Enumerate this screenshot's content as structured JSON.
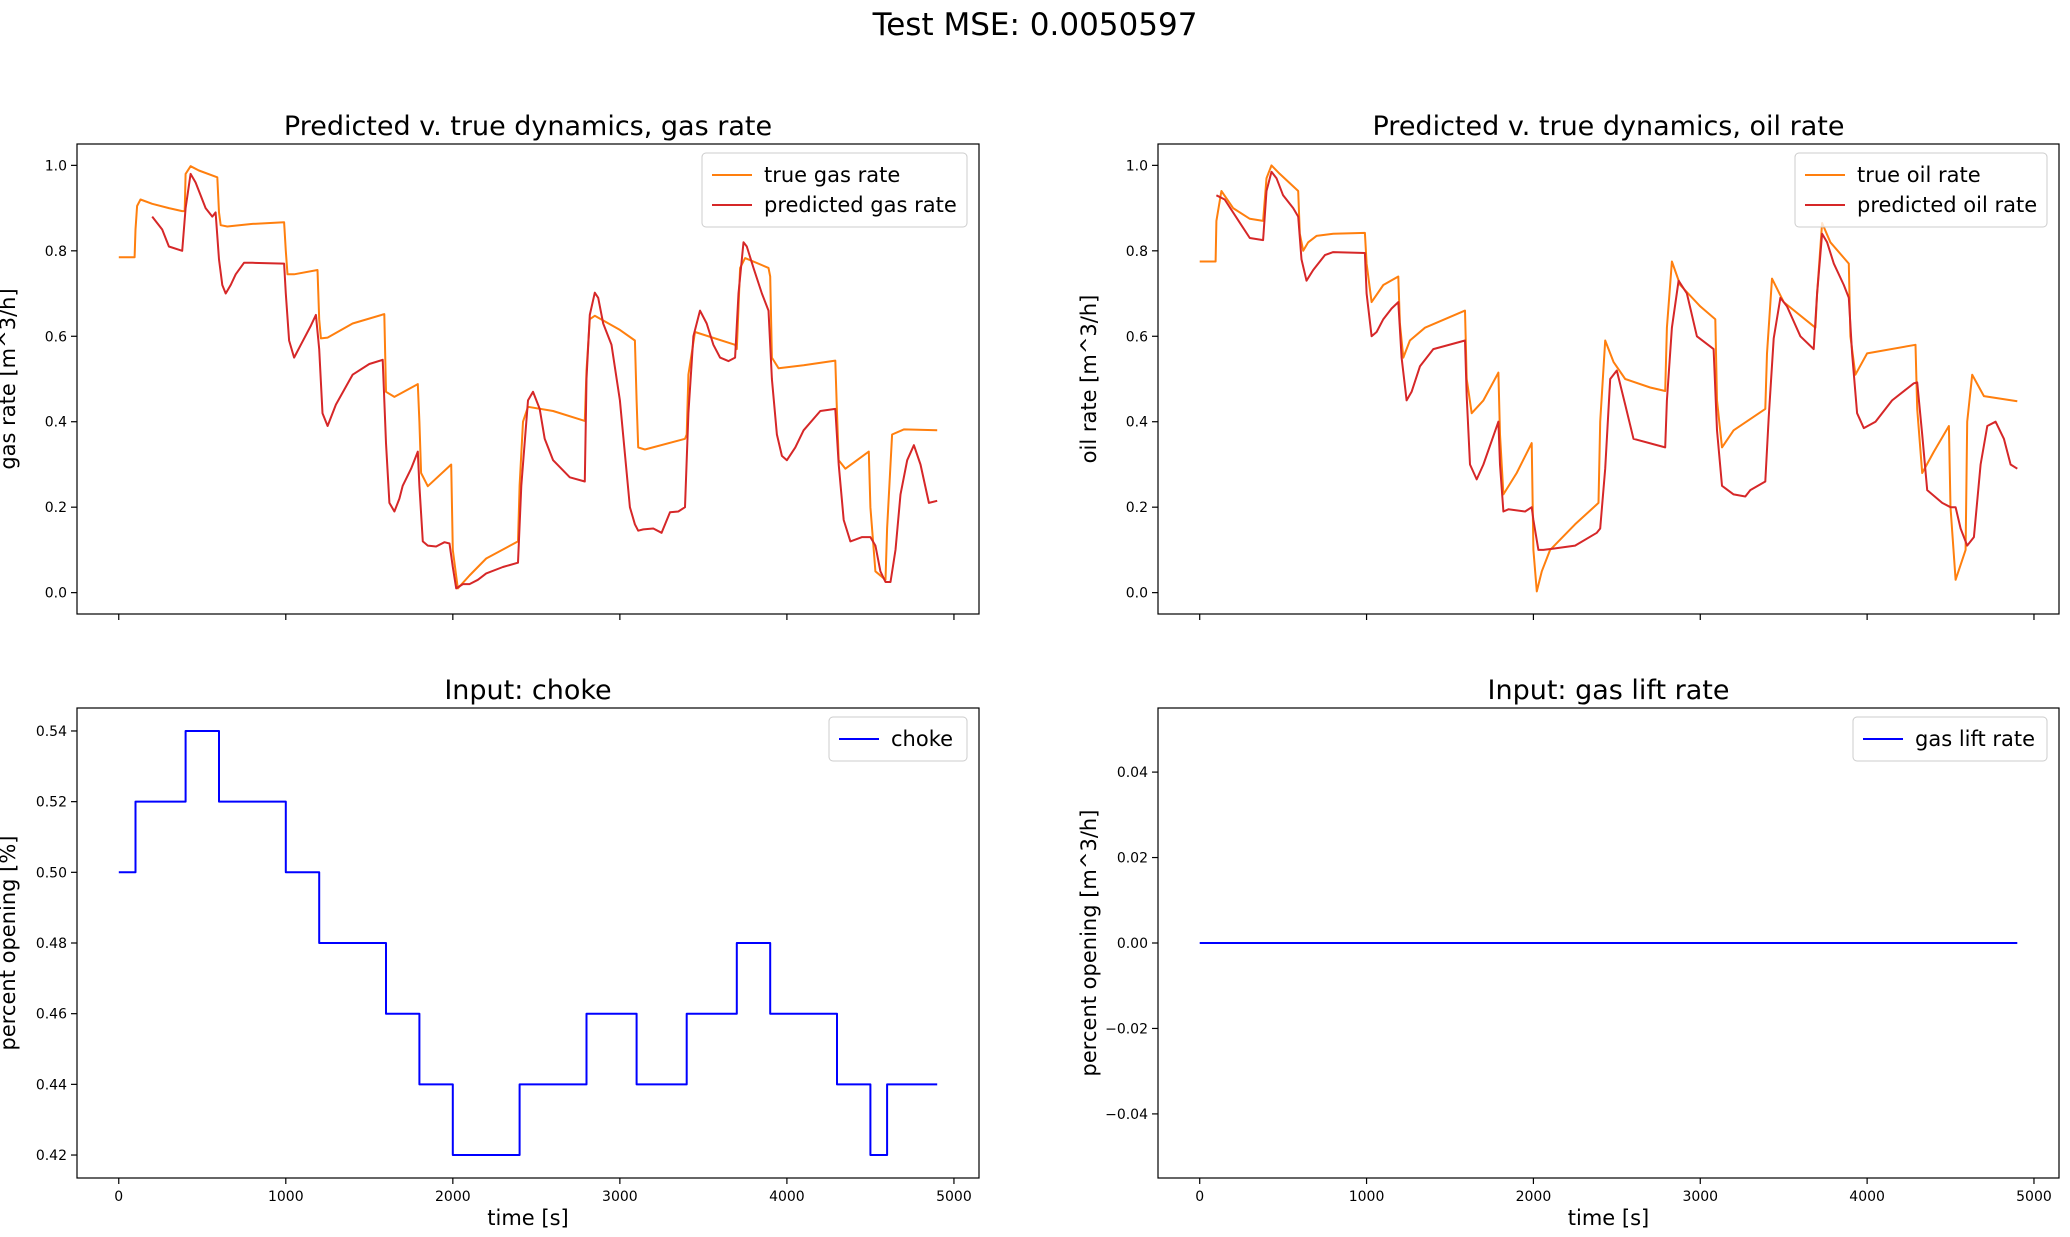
{
  "figure": {
    "suptitle": "Test MSE: 0.0050597"
  },
  "chart_data": [
    {
      "type": "line",
      "title": "Predicted v. true dynamics, gas rate",
      "xlabel": "",
      "ylabel": "gas rate [m^3/h]",
      "xlim": [
        -250,
        5150
      ],
      "ylim": [
        -0.05,
        1.05
      ],
      "yticks": [
        0.0,
        0.2,
        0.4,
        0.6,
        0.8,
        1.0
      ],
      "ytick_labels": [
        "0.0",
        "0.2",
        "0.4",
        "0.6",
        "0.8",
        "1.0"
      ],
      "xticks": [
        0,
        1000,
        2000,
        3000,
        4000,
        5000
      ],
      "xtick_labels": [],
      "legend": "top-right",
      "grid": false,
      "series": [
        {
          "name": "true gas rate",
          "color": "#ff7f0e",
          "x": [
            0,
            95,
            100,
            110,
            130,
            200,
            300,
            380,
            395,
            400,
            430,
            480,
            590,
            600,
            610,
            650,
            800,
            990,
            1000,
            1010,
            1050,
            1190,
            1200,
            1210,
            1250,
            1400,
            1590,
            1600,
            1650,
            1790,
            1800,
            1810,
            1850,
            1990,
            2000,
            2030,
            2100,
            2200,
            2390,
            2400,
            2420,
            2450,
            2600,
            2790,
            2800,
            2820,
            2850,
            3000,
            3090,
            3100,
            3110,
            3150,
            3390,
            3400,
            3410,
            3450,
            3690,
            3700,
            3720,
            3750,
            3890,
            3900,
            3910,
            3950,
            4100,
            4290,
            4300,
            4310,
            4350,
            4490,
            4500,
            4530,
            4590,
            4600,
            4630,
            4700,
            4900
          ],
          "y": [
            0.785,
            0.785,
            0.85,
            0.905,
            0.92,
            0.91,
            0.9,
            0.893,
            0.893,
            0.98,
            0.998,
            0.988,
            0.972,
            0.89,
            0.86,
            0.857,
            0.863,
            0.867,
            0.8,
            0.745,
            0.745,
            0.755,
            0.64,
            0.595,
            0.597,
            0.63,
            0.652,
            0.47,
            0.458,
            0.488,
            0.4,
            0.28,
            0.249,
            0.3,
            0.1,
            0.01,
            0.04,
            0.08,
            0.12,
            0.25,
            0.4,
            0.435,
            0.425,
            0.402,
            0.52,
            0.64,
            0.648,
            0.615,
            0.59,
            0.45,
            0.34,
            0.335,
            0.36,
            0.37,
            0.51,
            0.61,
            0.58,
            0.57,
            0.76,
            0.783,
            0.76,
            0.74,
            0.55,
            0.525,
            0.532,
            0.543,
            0.42,
            0.31,
            0.29,
            0.33,
            0.2,
            0.05,
            0.03,
            0.15,
            0.37,
            0.382,
            0.38
          ]
        },
        {
          "name": "predicted gas rate",
          "color": "#d62728",
          "x": [
            200,
            260,
            300,
            380,
            400,
            430,
            460,
            490,
            520,
            560,
            580,
            600,
            620,
            640,
            670,
            700,
            750,
            800,
            990,
            1000,
            1020,
            1050,
            1090,
            1150,
            1180,
            1200,
            1220,
            1250,
            1300,
            1400,
            1500,
            1580,
            1600,
            1620,
            1650,
            1680,
            1700,
            1750,
            1790,
            1800,
            1820,
            1850,
            1900,
            1950,
            1980,
            2000,
            2020,
            2060,
            2100,
            2150,
            2200,
            2300,
            2390,
            2410,
            2450,
            2480,
            2520,
            2550,
            2600,
            2700,
            2790,
            2800,
            2820,
            2850,
            2870,
            2900,
            2950,
            3000,
            3060,
            3090,
            3110,
            3140,
            3200,
            3250,
            3300,
            3350,
            3390,
            3410,
            3440,
            3480,
            3520,
            3560,
            3600,
            3650,
            3690,
            3710,
            3740,
            3760,
            3800,
            3850,
            3890,
            3910,
            3940,
            3970,
            4000,
            4050,
            4100,
            4200,
            4290,
            4310,
            4340,
            4380,
            4450,
            4500,
            4530,
            4560,
            4590,
            4620,
            4650,
            4680,
            4720,
            4760,
            4800,
            4850,
            4900
          ],
          "y": [
            0.88,
            0.85,
            0.81,
            0.8,
            0.9,
            0.98,
            0.96,
            0.93,
            0.9,
            0.88,
            0.89,
            0.78,
            0.72,
            0.7,
            0.72,
            0.745,
            0.772,
            0.772,
            0.77,
            0.7,
            0.59,
            0.55,
            0.58,
            0.625,
            0.65,
            0.57,
            0.42,
            0.39,
            0.44,
            0.51,
            0.535,
            0.545,
            0.35,
            0.21,
            0.19,
            0.22,
            0.25,
            0.29,
            0.33,
            0.25,
            0.12,
            0.11,
            0.108,
            0.118,
            0.115,
            0.06,
            0.01,
            0.02,
            0.02,
            0.03,
            0.045,
            0.06,
            0.07,
            0.25,
            0.45,
            0.47,
            0.43,
            0.36,
            0.31,
            0.27,
            0.26,
            0.5,
            0.65,
            0.702,
            0.69,
            0.63,
            0.58,
            0.45,
            0.2,
            0.16,
            0.145,
            0.148,
            0.15,
            0.14,
            0.188,
            0.19,
            0.2,
            0.42,
            0.6,
            0.66,
            0.63,
            0.58,
            0.55,
            0.542,
            0.55,
            0.7,
            0.82,
            0.81,
            0.76,
            0.7,
            0.66,
            0.5,
            0.37,
            0.32,
            0.31,
            0.34,
            0.38,
            0.425,
            0.43,
            0.3,
            0.17,
            0.12,
            0.13,
            0.13,
            0.11,
            0.05,
            0.025,
            0.025,
            0.1,
            0.23,
            0.31,
            0.345,
            0.3,
            0.21,
            0.215
          ]
        }
      ]
    },
    {
      "type": "line",
      "title": "Predicted v. true dynamics, oil rate",
      "xlabel": "",
      "ylabel": "oil rate [m^3/h]",
      "xlim": [
        -250,
        5150
      ],
      "ylim": [
        -0.05,
        1.05
      ],
      "yticks": [
        0.0,
        0.2,
        0.4,
        0.6,
        0.8,
        1.0
      ],
      "ytick_labels": [
        "0.0",
        "0.2",
        "0.4",
        "0.6",
        "0.8",
        "1.0"
      ],
      "xticks": [
        0,
        1000,
        2000,
        3000,
        4000,
        5000
      ],
      "xtick_labels": [],
      "legend": "top-right",
      "grid": false,
      "series": [
        {
          "name": "true oil rate",
          "color": "#ff7f0e",
          "x": [
            0,
            95,
            100,
            130,
            200,
            300,
            380,
            400,
            430,
            480,
            590,
            600,
            620,
            650,
            700,
            800,
            990,
            1000,
            1030,
            1100,
            1190,
            1200,
            1220,
            1260,
            1350,
            1590,
            1600,
            1630,
            1700,
            1790,
            1800,
            1820,
            1900,
            1990,
            2000,
            2020,
            2050,
            2100,
            2250,
            2390,
            2400,
            2430,
            2480,
            2550,
            2700,
            2790,
            2800,
            2830,
            2880,
            3000,
            3090,
            3100,
            3130,
            3200,
            3390,
            3400,
            3430,
            3500,
            3690,
            3700,
            3730,
            3780,
            3890,
            3900,
            3930,
            4000,
            4290,
            4300,
            4330,
            4400,
            4490,
            4500,
            4530,
            4590,
            4600,
            4630,
            4700,
            4900
          ],
          "y": [
            0.775,
            0.775,
            0.87,
            0.94,
            0.9,
            0.875,
            0.87,
            0.97,
            1.0,
            0.98,
            0.94,
            0.84,
            0.8,
            0.82,
            0.835,
            0.84,
            0.842,
            0.77,
            0.68,
            0.72,
            0.74,
            0.63,
            0.55,
            0.59,
            0.62,
            0.66,
            0.5,
            0.42,
            0.45,
            0.515,
            0.37,
            0.23,
            0.28,
            0.35,
            0.1,
            0.003,
            0.05,
            0.1,
            0.16,
            0.21,
            0.4,
            0.59,
            0.54,
            0.5,
            0.48,
            0.472,
            0.62,
            0.775,
            0.72,
            0.67,
            0.64,
            0.45,
            0.34,
            0.38,
            0.43,
            0.56,
            0.735,
            0.68,
            0.62,
            0.7,
            0.865,
            0.82,
            0.77,
            0.6,
            0.51,
            0.56,
            0.58,
            0.43,
            0.28,
            0.33,
            0.39,
            0.2,
            0.03,
            0.1,
            0.4,
            0.51,
            0.46,
            0.448
          ]
        },
        {
          "name": "predicted oil rate",
          "color": "#d62728",
          "x": [
            100,
            150,
            200,
            250,
            300,
            380,
            400,
            430,
            460,
            500,
            560,
            590,
            610,
            640,
            680,
            750,
            800,
            990,
            1000,
            1030,
            1060,
            1100,
            1150,
            1190,
            1210,
            1240,
            1270,
            1320,
            1400,
            1590,
            1600,
            1620,
            1660,
            1700,
            1790,
            1800,
            1820,
            1850,
            1950,
            1990,
            2000,
            2030,
            2060,
            2120,
            2250,
            2380,
            2400,
            2430,
            2460,
            2500,
            2550,
            2600,
            2790,
            2800,
            2830,
            2870,
            2920,
            2980,
            3080,
            3100,
            3130,
            3200,
            3270,
            3300,
            3390,
            3410,
            3440,
            3480,
            3520,
            3600,
            3680,
            3700,
            3730,
            3760,
            3800,
            3860,
            3890,
            3910,
            3940,
            3980,
            4050,
            4150,
            4280,
            4300,
            4330,
            4360,
            4450,
            4500,
            4530,
            4560,
            4600,
            4640,
            4680,
            4720,
            4770,
            4820,
            4860,
            4900
          ],
          "y": [
            0.93,
            0.92,
            0.89,
            0.86,
            0.83,
            0.825,
            0.94,
            0.985,
            0.97,
            0.93,
            0.9,
            0.88,
            0.78,
            0.73,
            0.755,
            0.79,
            0.797,
            0.795,
            0.7,
            0.6,
            0.61,
            0.64,
            0.665,
            0.68,
            0.55,
            0.45,
            0.47,
            0.53,
            0.57,
            0.59,
            0.46,
            0.3,
            0.265,
            0.3,
            0.4,
            0.3,
            0.19,
            0.195,
            0.19,
            0.2,
            0.17,
            0.1,
            0.1,
            0.103,
            0.11,
            0.14,
            0.15,
            0.29,
            0.5,
            0.52,
            0.44,
            0.36,
            0.34,
            0.45,
            0.62,
            0.73,
            0.7,
            0.6,
            0.57,
            0.38,
            0.25,
            0.23,
            0.225,
            0.24,
            0.26,
            0.41,
            0.595,
            0.69,
            0.67,
            0.6,
            0.57,
            0.7,
            0.84,
            0.82,
            0.77,
            0.72,
            0.69,
            0.56,
            0.42,
            0.385,
            0.4,
            0.45,
            0.49,
            0.492,
            0.37,
            0.24,
            0.21,
            0.2,
            0.2,
            0.15,
            0.11,
            0.13,
            0.3,
            0.39,
            0.4,
            0.36,
            0.3,
            0.29
          ]
        }
      ]
    },
    {
      "type": "line",
      "title": "Input: choke",
      "xlabel": "time [s]",
      "ylabel": "percent opening [%]",
      "xlim": [
        -250,
        5150
      ],
      "ylim": [
        0.4135,
        0.5465
      ],
      "yticks": [
        0.42,
        0.44,
        0.46,
        0.48,
        0.5,
        0.52,
        0.54
      ],
      "ytick_labels": [
        "0.42",
        "0.44",
        "0.46",
        "0.48",
        "0.50",
        "0.52",
        "0.54"
      ],
      "xticks": [
        0,
        1000,
        2000,
        3000,
        4000,
        5000
      ],
      "xtick_labels": [
        "0",
        "1000",
        "2000",
        "3000",
        "4000",
        "5000"
      ],
      "legend": "top-right",
      "grid": false,
      "series": [
        {
          "name": "choke",
          "color": "#0000ff",
          "step": true,
          "x": [
            0,
            100,
            400,
            600,
            1000,
            1200,
            1600,
            1800,
            2000,
            2400,
            2800,
            3100,
            3400,
            3700,
            3900,
            4300,
            4500,
            4600,
            4900
          ],
          "y": [
            0.5,
            0.52,
            0.54,
            0.52,
            0.5,
            0.48,
            0.46,
            0.44,
            0.42,
            0.44,
            0.46,
            0.44,
            0.46,
            0.48,
            0.46,
            0.44,
            0.42,
            0.44,
            0.44
          ]
        }
      ]
    },
    {
      "type": "line",
      "title": "Input: gas lift rate",
      "xlabel": "time [s]",
      "ylabel": "percent opening [m^3/h]",
      "xlim": [
        -250,
        5150
      ],
      "ylim": [
        -0.055,
        0.055
      ],
      "yticks": [
        -0.04,
        -0.02,
        0.0,
        0.02,
        0.04
      ],
      "ytick_labels": [
        "−0.04",
        "−0.02",
        "0.00",
        "0.02",
        "0.04"
      ],
      "xticks": [
        0,
        1000,
        2000,
        3000,
        4000,
        5000
      ],
      "xtick_labels": [
        "0",
        "1000",
        "2000",
        "3000",
        "4000",
        "5000"
      ],
      "legend": "top-right",
      "grid": false,
      "series": [
        {
          "name": "gas lift rate",
          "color": "#0000ff",
          "x": [
            0,
            4900
          ],
          "y": [
            0.0,
            0.0
          ]
        }
      ]
    }
  ]
}
